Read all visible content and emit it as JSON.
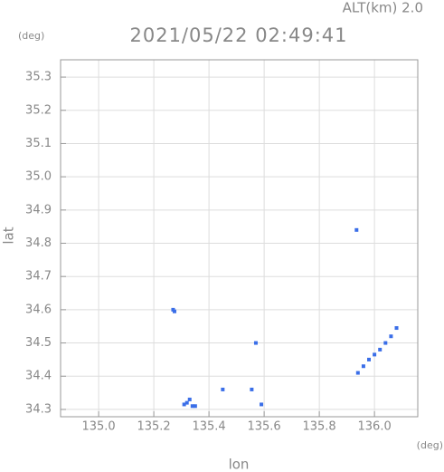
{
  "chart_data": {
    "type": "scatter",
    "title": "2021/05/22 02:49:41",
    "subtitle": "ALT(km) 2.0",
    "y_unit": "(deg)",
    "x_unit": "(deg)",
    "xlabel": "lon",
    "ylabel": "lat",
    "color": "#3a6ee8",
    "x": [
      135.27,
      135.275,
      135.57,
      135.935,
      135.32,
      135.33,
      135.34,
      135.35,
      135.31,
      135.45,
      135.555,
      135.59,
      135.94,
      135.96,
      135.98,
      136.0,
      136.02,
      136.04,
      136.06,
      136.08
    ],
    "values": [
      34.6,
      34.595,
      34.5,
      34.84,
      34.32,
      34.33,
      34.31,
      34.31,
      34.315,
      34.36,
      34.36,
      34.315,
      34.41,
      34.43,
      34.45,
      34.465,
      34.48,
      34.5,
      34.52,
      34.545
    ],
    "xlim": [
      134.862,
      136.157
    ],
    "ylim": [
      34.278,
      35.352
    ],
    "xticks": [
      {
        "value": 135.0,
        "label": "135.0"
      },
      135.2,
      135.4,
      135.6,
      135.8,
      {
        "value": 136.0,
        "label": "136.0"
      }
    ],
    "yticks": [
      34.3,
      34.4,
      34.5,
      34.6,
      34.7,
      34.8,
      34.9,
      {
        "value": 35.0,
        "label": "35.0"
      },
      35.1,
      35.2,
      35.3
    ],
    "grid": true
  }
}
